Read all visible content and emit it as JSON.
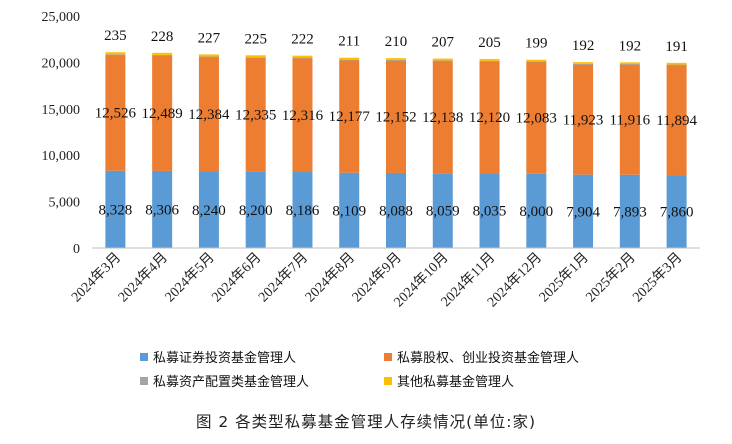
{
  "caption": "图 2 各类型私募基金管理人存续情况(单位:家)",
  "chart_data": {
    "type": "bar",
    "stacked": true,
    "categories": [
      "2024年3月",
      "2024年4月",
      "2024年5月",
      "2024年6月",
      "2024年7月",
      "2024年8月",
      "2024年9月",
      "2024年10月",
      "2024年11月",
      "2024年12月",
      "2025年1月",
      "2025年2月",
      "2025年3月"
    ],
    "series": [
      {
        "name": "私募证券投资基金管理人",
        "color": "#5B9BD5",
        "values": [
          8328,
          8306,
          8240,
          8200,
          8186,
          8109,
          8088,
          8059,
          8035,
          8000,
          7904,
          7893,
          7860
        ],
        "labels": [
          "8,328",
          "8,306",
          "8,240",
          "8,200",
          "8,186",
          "8,109",
          "8,088",
          "8,059",
          "8,035",
          "8,000",
          "7,904",
          "7,893",
          "7,860"
        ]
      },
      {
        "name": "私募股权、创业投资基金管理人",
        "color": "#ED7D31",
        "values": [
          12526,
          12489,
          12384,
          12335,
          12316,
          12177,
          12152,
          12138,
          12120,
          12083,
          11923,
          11916,
          11894
        ],
        "labels": [
          "12,526",
          "12,489",
          "12,384",
          "12,335",
          "12,316",
          "12,177",
          "12,152",
          "12,138",
          "12,120",
          "12,083",
          "11,923",
          "11,916",
          "11,894"
        ]
      },
      {
        "name": "私募资产配置类基金管理人",
        "color": "#A5A5A5",
        "values": [
          9,
          9,
          9,
          9,
          9,
          9,
          9,
          9,
          9,
          9,
          9,
          9,
          9
        ]
      },
      {
        "name": "其他私募基金管理人",
        "color": "#FFC000",
        "values": [
          235,
          228,
          227,
          225,
          222,
          211,
          210,
          207,
          205,
          199,
          192,
          192,
          191
        ],
        "labels": [
          "235",
          "228",
          "227",
          "225",
          "222",
          "211",
          "210",
          "207",
          "205",
          "199",
          "192",
          "192",
          "191"
        ]
      }
    ],
    "yticks": [
      "0",
      "5,000",
      "10,000",
      "15,000",
      "20,000",
      "25,000"
    ],
    "ylim": [
      0,
      25000
    ],
    "grid": false,
    "legend_position": "bottom"
  }
}
